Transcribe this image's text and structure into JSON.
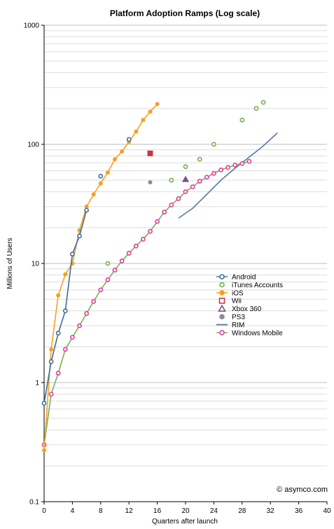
{
  "chart_data": {
    "type": "line",
    "title": "Platform Adoption Ramps (Log scale)",
    "xlabel": "Quarters after launch",
    "ylabel": "Millions of Users",
    "xlim": [
      0,
      40
    ],
    "ylim": [
      0.1,
      1000
    ],
    "y_scale": "log",
    "grid": "horizontal minor log gridlines",
    "legend_position": "right-center",
    "x_ticks": [
      "0",
      "4",
      "8",
      "12",
      "16",
      "20",
      "24",
      "28",
      "32",
      "36",
      "40"
    ],
    "y_ticks": [
      "0.1",
      "1",
      "10",
      "100",
      "1000"
    ],
    "credit": "© asymco.com",
    "series": [
      {
        "name": "Android",
        "color": "#3f6e9c",
        "marker": "circle",
        "filled": false,
        "points": [
          [
            0,
            0.67
          ],
          [
            1,
            1.5
          ],
          [
            2,
            2.6
          ],
          [
            3,
            4.0
          ],
          [
            4,
            12
          ],
          [
            5,
            17
          ],
          [
            6,
            28
          ]
        ],
        "extra_points": [
          [
            8,
            54
          ],
          [
            12,
            110
          ]
        ]
      },
      {
        "name": "iTunes Accounts",
        "color": "#78ad4f",
        "marker": "circle",
        "filled": false,
        "points": [],
        "extra_points": [
          [
            9,
            10
          ],
          [
            18,
            50
          ],
          [
            20,
            65
          ],
          [
            22,
            75
          ],
          [
            24,
            100
          ],
          [
            28,
            160
          ],
          [
            30,
            200
          ],
          [
            31,
            225
          ]
        ]
      },
      {
        "name": "iOS",
        "color": "#f5a121",
        "marker": "circle",
        "filled": true,
        "points": [
          [
            0,
            0.27
          ],
          [
            1,
            1.9
          ],
          [
            2,
            5.4
          ],
          [
            3,
            8.1
          ],
          [
            4,
            10
          ],
          [
            5,
            19
          ],
          [
            6,
            30
          ],
          [
            7,
            38
          ],
          [
            8,
            47
          ],
          [
            9,
            58
          ],
          [
            10,
            75
          ],
          [
            11,
            87
          ],
          [
            12,
            105
          ],
          [
            13,
            128
          ],
          [
            14,
            160
          ],
          [
            15,
            188
          ],
          [
            16,
            218
          ]
        ]
      },
      {
        "name": "Wii",
        "color": "#c8373f",
        "marker": "square",
        "filled": true,
        "points": [],
        "extra_points": [
          [
            15,
            84
          ]
        ]
      },
      {
        "name": "Xbox 360",
        "color": "#7a4f8c",
        "marker": "triangle",
        "filled": true,
        "points": [],
        "extra_points": [
          [
            20,
            51
          ]
        ]
      },
      {
        "name": "PS3",
        "color": "#8c8c8c",
        "marker": "circle",
        "filled": true,
        "points": [],
        "extra_points": [
          [
            15,
            48
          ]
        ]
      },
      {
        "name": "RIM",
        "color": "#5278a8",
        "marker": "none",
        "filled": false,
        "points": [
          [
            19,
            24
          ],
          [
            21,
            29
          ],
          [
            23,
            38
          ],
          [
            25,
            50
          ],
          [
            27,
            63
          ],
          [
            29,
            78
          ],
          [
            31,
            97
          ],
          [
            33,
            125
          ]
        ]
      },
      {
        "name": "Windows Mobile",
        "color": "#e33a9c",
        "line_color": "#79b150",
        "marker": "circle",
        "filled": false,
        "points": [
          [
            0,
            0.3
          ],
          [
            1,
            0.8
          ],
          [
            2,
            1.2
          ],
          [
            3,
            1.9
          ],
          [
            4,
            2.4
          ],
          [
            5,
            3.0
          ],
          [
            6,
            3.8
          ],
          [
            7,
            4.8
          ],
          [
            8,
            6.0
          ],
          [
            9,
            7.3
          ],
          [
            10,
            8.8
          ],
          [
            11,
            10.5
          ],
          [
            12,
            12.2
          ],
          [
            13,
            14.0
          ],
          [
            14,
            16.0
          ],
          [
            15,
            18.6
          ],
          [
            16,
            22.5
          ],
          [
            17,
            27
          ],
          [
            18,
            31
          ],
          [
            19,
            35
          ],
          [
            20,
            40
          ],
          [
            21,
            44
          ],
          [
            22,
            49
          ],
          [
            23,
            53
          ],
          [
            24,
            57
          ],
          [
            25,
            61
          ],
          [
            26,
            64
          ],
          [
            27,
            67
          ],
          [
            28,
            69
          ],
          [
            29,
            72
          ]
        ]
      }
    ]
  }
}
